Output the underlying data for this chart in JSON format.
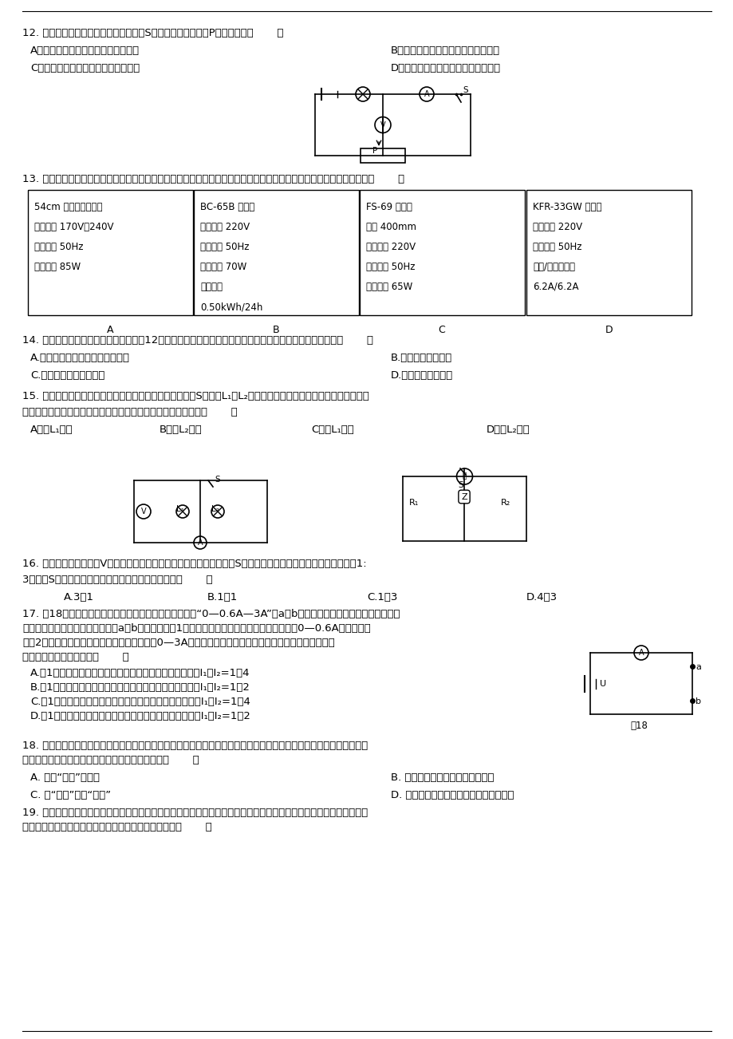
{
  "bg_color": "#ffffff",
  "table_data": [
    [
      "54cm 彩色电视接收机",
      "BC-65B 电冰箱",
      "FS-69 电风扇",
      "KFR-33GW 空调机"
    ],
    [
      "工作电压 170V～240V",
      "额定电压 220V",
      "规格 400mm",
      "额定电压 220V"
    ],
    [
      "工作頻率 50Hz",
      "工作頻率 50Hz",
      "额定电压 220V",
      "工作頻率 50Hz"
    ],
    [
      "额定功率 85W",
      "额定功率 70W",
      "工作頻率 50Hz",
      "制冷/制热电流："
    ],
    [
      "",
      "耗电量：",
      "额定功率 65W",
      "6.2A/6.2A"
    ],
    [
      "",
      "0.50kWh/24h",
      "",
      ""
    ]
  ],
  "col_starts": [
    35,
    243,
    451,
    660
  ],
  "col_ends": [
    242,
    450,
    658,
    867
  ],
  "col_labels": [
    "A",
    "B",
    "C",
    "D"
  ]
}
